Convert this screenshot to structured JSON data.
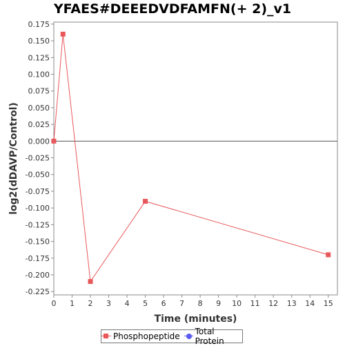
{
  "chart_data": {
    "type": "line",
    "title": "YFAES#DEEEDVDFAMFN(+ 2)_v1",
    "xlabel": "Time (minutes)",
    "ylabel": "log2(dDAVP/Control)",
    "xlim": [
      0,
      15.5
    ],
    "ylim": [
      -0.23,
      0.178
    ],
    "x_ticks": [
      0,
      1,
      2,
      3,
      4,
      5,
      6,
      7,
      8,
      9,
      10,
      11,
      12,
      13,
      14,
      15
    ],
    "y_ticks": [
      0.175,
      0.15,
      0.125,
      0.1,
      0.075,
      0.05,
      0.025,
      0.0,
      -0.025,
      -0.05,
      -0.075,
      -0.1,
      -0.125,
      -0.15,
      -0.175,
      -0.2,
      -0.225
    ],
    "y_tick_labels": [
      "0.175",
      "0.150",
      "0.125",
      "0.100",
      "0.075",
      "0.050",
      "0.025",
      "0.000",
      "-0.025",
      "-0.050",
      "-0.075",
      "-0.100",
      "-0.125",
      "-0.150",
      "-0.175",
      "-0.200",
      "-0.225"
    ],
    "grid": false,
    "zero_line": true,
    "legend_position": "bottom",
    "series": [
      {
        "name": "Phosphopeptide",
        "color": "#e8575a",
        "marker": "square",
        "x": [
          0,
          0.5,
          2,
          5,
          15
        ],
        "y": [
          0.0,
          0.16,
          -0.21,
          -0.09,
          -0.17
        ]
      },
      {
        "name": "Total Protein",
        "color": "#5b5bf0",
        "marker": "circle",
        "x": [],
        "y": []
      }
    ]
  }
}
